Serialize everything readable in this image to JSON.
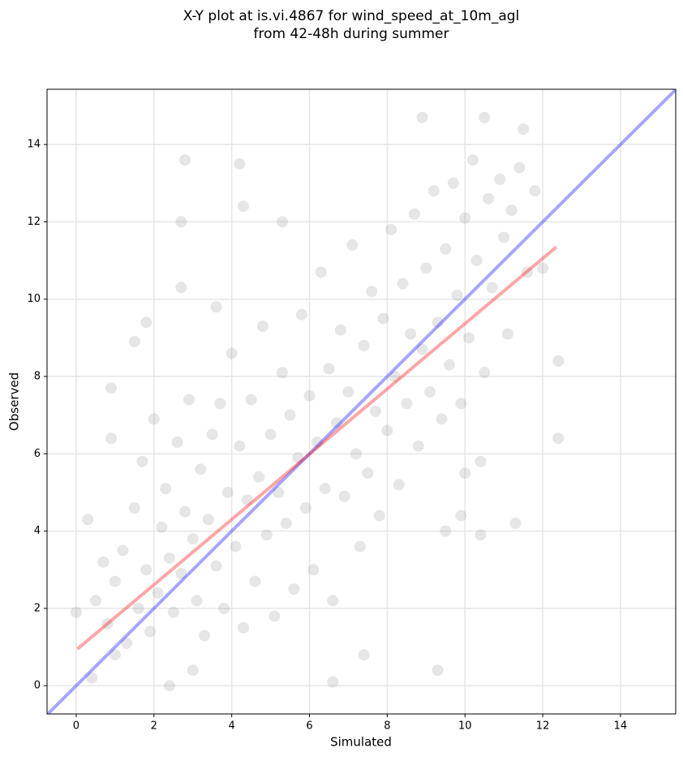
{
  "chart_data": {
    "type": "scatter",
    "title": "X-Y plot at is.vi.4867 for wind_speed_at_10m_agl",
    "subtitle": "from 42-48h during summer",
    "x_label": "Simulated",
    "y_label": "Observed",
    "xlim": [
      -0.75,
      15.42
    ],
    "ylim": [
      -0.73,
      15.43
    ],
    "xticks": [
      0,
      2,
      4,
      6,
      8,
      10,
      12,
      14
    ],
    "yticks": [
      0,
      2,
      4,
      6,
      8,
      10,
      12,
      14
    ],
    "grid": true,
    "color": "#808080",
    "x": [
      0,
      0.3,
      0.9,
      0.9,
      1.5,
      1.8,
      2.8,
      2.7,
      2.7,
      4.2,
      4.3,
      5.3,
      3.6,
      8.9,
      10.5,
      11.5,
      12.4,
      12.4,
      11.3,
      9.3,
      6.6,
      7.4,
      2.4,
      0.4,
      10.4,
      9.5,
      9.9,
      10.0,
      10.4,
      1.0,
      3.0,
      0.5,
      0.7,
      0.8,
      1.0,
      1.2,
      1.3,
      1.5,
      1.6,
      1.7,
      1.8,
      1.9,
      2.0,
      2.1,
      2.2,
      2.3,
      2.4,
      2.5,
      2.6,
      2.7,
      2.8,
      2.9,
      3.0,
      3.1,
      3.2,
      3.3,
      3.4,
      3.5,
      3.6,
      3.7,
      3.8,
      3.9,
      4.0,
      4.1,
      4.2,
      4.3,
      4.4,
      4.5,
      4.6,
      4.7,
      4.8,
      4.9,
      5.0,
      5.1,
      5.2,
      5.3,
      5.4,
      5.5,
      5.6,
      5.7,
      5.8,
      5.9,
      6.0,
      6.1,
      6.2,
      6.3,
      6.4,
      6.5,
      6.6,
      6.7,
      6.8,
      6.9,
      7.0,
      7.1,
      7.2,
      7.3,
      7.4,
      7.5,
      7.6,
      7.7,
      7.8,
      7.9,
      8.0,
      8.1,
      8.2,
      8.3,
      8.4,
      8.5,
      8.6,
      8.7,
      8.8,
      8.9,
      9.0,
      9.1,
      9.2,
      9.3,
      9.4,
      9.5,
      9.6,
      9.7,
      9.8,
      9.9,
      10.0,
      10.1,
      10.2,
      10.3,
      10.5,
      10.6,
      10.7,
      10.9,
      11.0,
      11.1,
      11.2,
      11.4,
      11.6,
      11.8,
      12.0
    ],
    "values": [
      1.9,
      4.3,
      7.7,
      6.4,
      8.9,
      9.4,
      13.6,
      12.0,
      10.3,
      13.5,
      12.4,
      12.0,
      9.8,
      14.7,
      14.7,
      14.4,
      8.4,
      6.4,
      4.2,
      0.4,
      0.1,
      0.8,
      0.0,
      0.2,
      3.9,
      4.0,
      4.4,
      5.5,
      5.8,
      0.8,
      0.4,
      2.2,
      3.2,
      1.6,
      2.7,
      3.5,
      1.1,
      4.6,
      2.0,
      5.8,
      3.0,
      1.4,
      6.9,
      2.4,
      4.1,
      5.1,
      3.3,
      1.9,
      6.3,
      2.9,
      4.5,
      7.4,
      3.8,
      2.2,
      5.6,
      1.3,
      4.3,
      6.5,
      3.1,
      7.3,
      2.0,
      5.0,
      8.6,
      3.6,
      6.2,
      1.5,
      4.8,
      7.4,
      2.7,
      5.4,
      9.3,
      3.9,
      6.5,
      1.8,
      5.0,
      8.1,
      4.2,
      7.0,
      2.5,
      5.9,
      9.6,
      4.6,
      7.5,
      3.0,
      6.3,
      10.7,
      5.1,
      8.2,
      2.2,
      6.8,
      9.2,
      4.9,
      7.6,
      11.4,
      6.0,
      3.6,
      8.8,
      5.5,
      10.2,
      7.1,
      4.4,
      9.5,
      6.6,
      11.8,
      8.0,
      5.2,
      10.4,
      7.3,
      9.1,
      12.2,
      6.2,
      8.7,
      10.8,
      7.6,
      12.8,
      9.4,
      6.9,
      11.3,
      8.3,
      13.0,
      10.1,
      7.3,
      12.1,
      9.0,
      13.6,
      11.0,
      8.1,
      12.6,
      10.3,
      13.1,
      11.6,
      9.1,
      12.3,
      13.4,
      10.7,
      12.8,
      10.8
    ],
    "lines": [
      {
        "color": "#0000ff",
        "x": [
          -0.75,
          15.42
        ],
        "values": [
          -0.75,
          15.42
        ]
      },
      {
        "color": "#ff0000",
        "x": [
          0.03,
          12.35
        ],
        "values": [
          0.95,
          11.35
        ]
      }
    ]
  }
}
